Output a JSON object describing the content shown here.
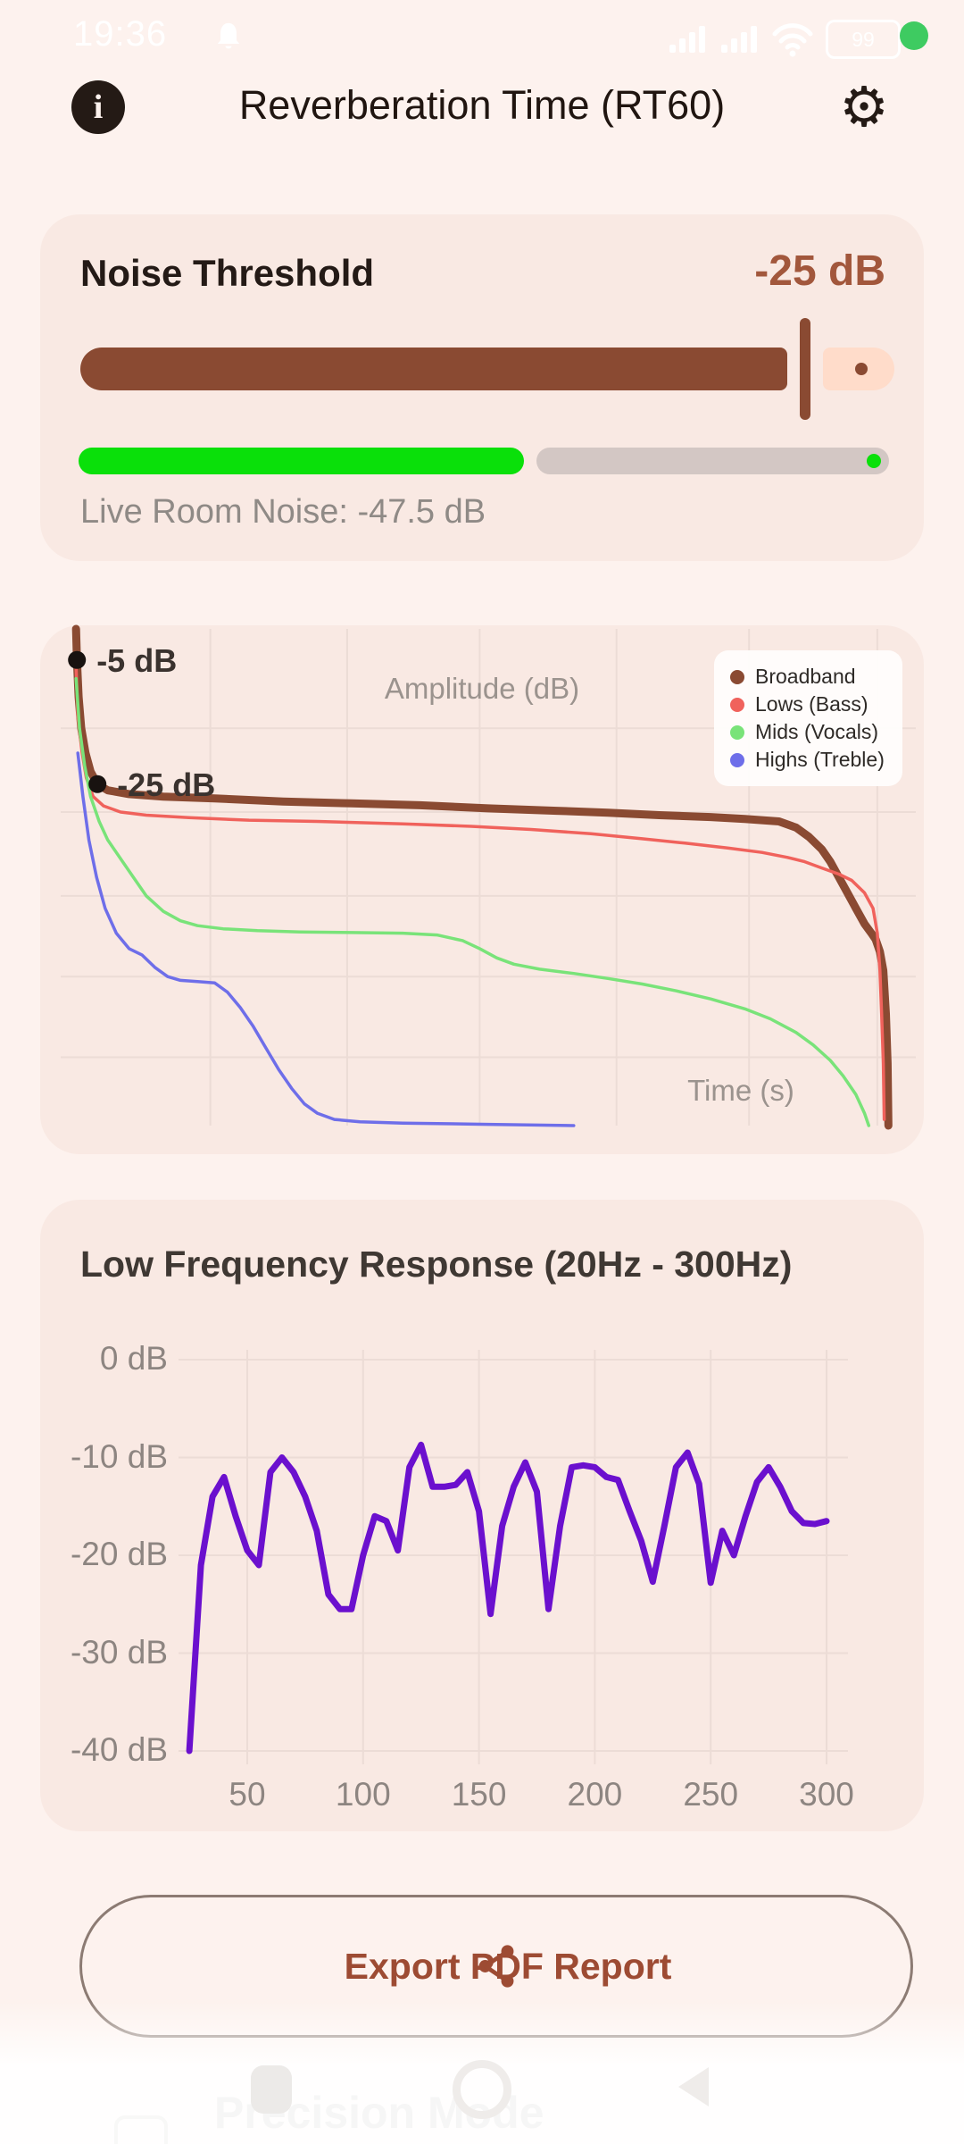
{
  "status_bar": {
    "time": "19:36",
    "battery_percent": "99",
    "recording_dot_color": "#3ecb61",
    "icons": [
      "bell-icon",
      "cellular-signal-icon",
      "cellular-signal-icon",
      "wifi-icon",
      "battery-icon"
    ]
  },
  "header": {
    "title": "Reverberation Time (RT60)",
    "left_icon": "info-icon",
    "right_icon": "settings-gear-icon"
  },
  "noise_threshold_card": {
    "title": "Noise Threshold",
    "value": "-25 dB",
    "slider_percent": 89,
    "live_noise_percent": 55,
    "live_noise_label": "Live Room Noise: -47.5 dB",
    "accent_color": "#8a4a32",
    "inactive_track_color": "#ffdcca",
    "live_bar_color": "#0ae00a",
    "live_track_color": "#d3c7c4"
  },
  "export_button": {
    "label": "Export PDF Report",
    "icon": "share-icon"
  },
  "bottom_sheet": {
    "label": "Precision Mode",
    "checkbox_checked": false
  },
  "nav_bar": {
    "icons": [
      "recents-square-icon",
      "home-circle-icon",
      "back-triangle-icon"
    ]
  },
  "chart_data": [
    {
      "id": "rt60_decay",
      "type": "line",
      "title": "",
      "xlabel": "Time (s)",
      "ylabel": "Amplitude (dB)",
      "x_units_note": "x = percent of time axis (no tick labels shown in UI)",
      "xlim": [
        0,
        100
      ],
      "ylim": [
        -80,
        0
      ],
      "grid": true,
      "x_gridlines": [
        17.5,
        33.5,
        49,
        65,
        80.5,
        95.5
      ],
      "y_gridlines": [
        -16,
        -29.5,
        -43,
        -56,
        -69
      ],
      "legend_position": "top-right",
      "annotations": [
        {
          "label": "-5 dB",
          "x": 1.9,
          "y": -5
        },
        {
          "label": "-25 dB",
          "x": 4.3,
          "y": -25
        }
      ],
      "series": [
        {
          "name": "Broadband",
          "color": "#8a4a32",
          "width": 9,
          "points": [
            [
              1.8,
              0
            ],
            [
              1.9,
              -5
            ],
            [
              2.1,
              -11
            ],
            [
              2.4,
              -16
            ],
            [
              2.9,
              -20
            ],
            [
              3.5,
              -23
            ],
            [
              4.3,
              -25
            ],
            [
              5.5,
              -26
            ],
            [
              8,
              -26.6
            ],
            [
              12,
              -27
            ],
            [
              18,
              -27.3
            ],
            [
              26,
              -27.8
            ],
            [
              34,
              -28.1
            ],
            [
              42,
              -28.4
            ],
            [
              50,
              -28.9
            ],
            [
              58,
              -29.3
            ],
            [
              64,
              -29.6
            ],
            [
              70,
              -30
            ],
            [
              76,
              -30.3
            ],
            [
              80,
              -30.6
            ],
            [
              84,
              -31
            ],
            [
              86,
              -32
            ],
            [
              87.5,
              -33.5
            ],
            [
              89,
              -35.5
            ],
            [
              90,
              -37.5
            ],
            [
              91,
              -40
            ],
            [
              92,
              -42.5
            ],
            [
              93,
              -45
            ],
            [
              94,
              -47.5
            ],
            [
              94.8,
              -49
            ],
            [
              95.3,
              -50
            ],
            [
              95.8,
              -52
            ],
            [
              96.2,
              -55
            ],
            [
              96.5,
              -62
            ],
            [
              96.7,
              -70
            ],
            [
              96.8,
              -80
            ]
          ]
        },
        {
          "name": "Lows (Bass)",
          "color": "#f0625c",
          "width": 3.5,
          "points": [
            [
              1.8,
              -6
            ],
            [
              2,
              -14
            ],
            [
              2.5,
              -20
            ],
            [
              3,
              -24
            ],
            [
              3.8,
              -27
            ],
            [
              5,
              -28.5
            ],
            [
              7,
              -29.5
            ],
            [
              10,
              -30
            ],
            [
              15,
              -30.4
            ],
            [
              22,
              -30.8
            ],
            [
              30,
              -31
            ],
            [
              40,
              -31.4
            ],
            [
              48,
              -31.8
            ],
            [
              55,
              -32.3
            ],
            [
              62,
              -33
            ],
            [
              68,
              -33.8
            ],
            [
              73,
              -34.5
            ],
            [
              78,
              -35.3
            ],
            [
              82,
              -36
            ],
            [
              85,
              -36.8
            ],
            [
              87,
              -37.5
            ],
            [
              89,
              -38.5
            ],
            [
              91,
              -39.5
            ],
            [
              92.5,
              -40.5
            ],
            [
              94,
              -42.5
            ],
            [
              95,
              -45
            ],
            [
              95.5,
              -49
            ],
            [
              95.8,
              -55
            ],
            [
              96,
              -62
            ],
            [
              96.2,
              -70
            ],
            [
              96.3,
              -79
            ]
          ]
        },
        {
          "name": "Mids (Vocals)",
          "color": "#79e379",
          "width": 3.5,
          "points": [
            [
              1.8,
              -8
            ],
            [
              2.2,
              -16
            ],
            [
              2.8,
              -22
            ],
            [
              3.5,
              -27
            ],
            [
              4.5,
              -31
            ],
            [
              5.5,
              -34
            ],
            [
              7,
              -37
            ],
            [
              8.5,
              -40
            ],
            [
              10,
              -43
            ],
            [
              12,
              -45.5
            ],
            [
              14,
              -47
            ],
            [
              16,
              -47.8
            ],
            [
              19,
              -48.3
            ],
            [
              23,
              -48.6
            ],
            [
              28,
              -48.8
            ],
            [
              34,
              -48.9
            ],
            [
              40,
              -49
            ],
            [
              44,
              -49.3
            ],
            [
              47,
              -50.2
            ],
            [
              49,
              -51.5
            ],
            [
              51,
              -53
            ],
            [
              53,
              -54
            ],
            [
              56,
              -54.8
            ],
            [
              60,
              -55.5
            ],
            [
              64,
              -56.3
            ],
            [
              68,
              -57.2
            ],
            [
              72,
              -58.3
            ],
            [
              76,
              -59.6
            ],
            [
              80,
              -61.2
            ],
            [
              83,
              -62.8
            ],
            [
              86,
              -65
            ],
            [
              88,
              -67
            ],
            [
              90,
              -69.5
            ],
            [
              91.5,
              -72
            ],
            [
              93,
              -75
            ],
            [
              94,
              -78
            ],
            [
              94.5,
              -80
            ]
          ]
        },
        {
          "name": "Highs (Treble)",
          "color": "#6e6ee9",
          "width": 3.5,
          "points": [
            [
              2,
              -20
            ],
            [
              2.6,
              -27
            ],
            [
              3.3,
              -34
            ],
            [
              4.2,
              -40
            ],
            [
              5.2,
              -45
            ],
            [
              6.5,
              -49
            ],
            [
              8,
              -51.5
            ],
            [
              9.5,
              -52.5
            ],
            [
              11,
              -54.5
            ],
            [
              12.5,
              -56
            ],
            [
              14,
              -56.6
            ],
            [
              16,
              -56.8
            ],
            [
              18,
              -57
            ],
            [
              19.5,
              -58.5
            ],
            [
              21,
              -61
            ],
            [
              22.5,
              -64
            ],
            [
              24,
              -67.5
            ],
            [
              25.5,
              -71
            ],
            [
              27,
              -74
            ],
            [
              28.5,
              -76.5
            ],
            [
              30,
              -78
            ],
            [
              32,
              -79
            ],
            [
              35,
              -79.4
            ],
            [
              40,
              -79.6
            ],
            [
              50,
              -79.8
            ],
            [
              60,
              -80
            ]
          ]
        }
      ]
    },
    {
      "id": "low_freq_response",
      "type": "line",
      "title": "Low Frequency Response (20Hz - 300Hz)",
      "xlabel": "",
      "ylabel": "",
      "xlim": [
        22.5,
        307.5
      ],
      "ylim": [
        -40,
        0
      ],
      "grid": true,
      "line_color": "#6b10ce",
      "x_ticks": [
        50,
        100,
        150,
        200,
        250,
        300
      ],
      "y_ticks": [
        "0 dB",
        "-10 dB",
        "-20 dB",
        "-30 dB",
        "-40 dB"
      ],
      "y_tick_values": [
        0,
        -10,
        -20,
        -30,
        -40
      ],
      "x": [
        25,
        30,
        35,
        40,
        45,
        50,
        55,
        60,
        65,
        70,
        75,
        80,
        85,
        90,
        95,
        100,
        105,
        110,
        115,
        120,
        125,
        130,
        135,
        140,
        145,
        150,
        155,
        160,
        165,
        170,
        175,
        180,
        185,
        190,
        195,
        200,
        205,
        210,
        215,
        220,
        225,
        230,
        235,
        240,
        245,
        250,
        255,
        260,
        265,
        270,
        275,
        280,
        285,
        290,
        295,
        300
      ],
      "values": [
        -40,
        -21,
        -14,
        -12,
        -16,
        -19.5,
        -21,
        -11.5,
        -10,
        -11.5,
        -14,
        -17.5,
        -24,
        -25.5,
        -25.5,
        -20,
        -16,
        -16.5,
        -19.5,
        -11,
        -8.7,
        -13,
        -13,
        -12.8,
        -11.5,
        -15.5,
        -26,
        -17,
        -13,
        -10.5,
        -13.5,
        -25.5,
        -17,
        -11,
        -10.8,
        -11,
        -12,
        -12.3,
        -15.5,
        -18.5,
        -22.7,
        -17,
        -11,
        -9.5,
        -12.7,
        -22.8,
        -17.5,
        -20,
        -16,
        -12.5,
        -11,
        -13,
        -15.5,
        -16.7,
        -16.8,
        -16.5
      ]
    }
  ]
}
